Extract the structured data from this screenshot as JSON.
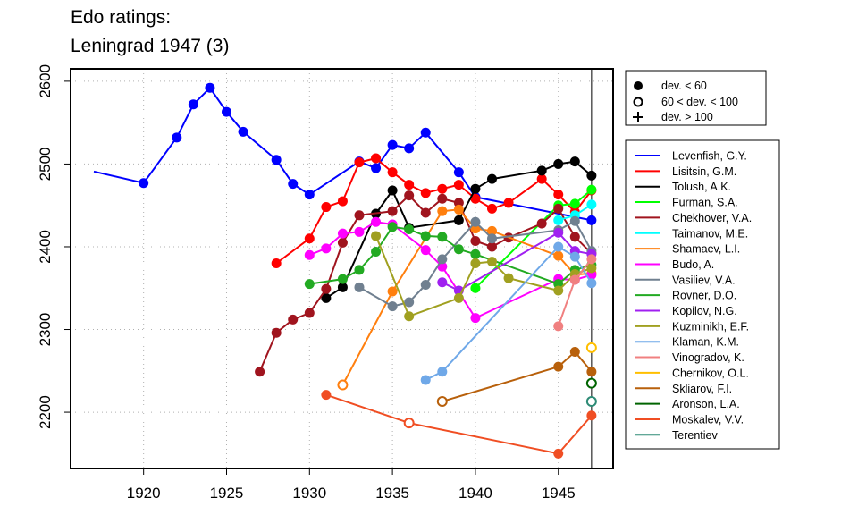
{
  "title_line1": "Edo ratings:",
  "title_line2": "Leningrad 1947 (3)",
  "chart_data": {
    "type": "line",
    "xlim": [
      1915.6,
      1948.3
    ],
    "ylim": [
      2132,
      2615
    ],
    "x_ticks": [
      1920,
      1925,
      1930,
      1935,
      1940,
      1945
    ],
    "y_ticks": [
      2200,
      2300,
      2400,
      2500,
      2600
    ],
    "grid": true,
    "reference_line_x": 1947,
    "legend_markers": [
      {
        "marker": "filled",
        "label": "dev. < 60"
      },
      {
        "marker": "open",
        "label": "60 < dev. < 100"
      },
      {
        "marker": "plus",
        "label": "dev. > 100"
      }
    ],
    "series": [
      {
        "name": "Levenfish, G.Y.",
        "color": "#0000FF",
        "points": [
          [
            1917,
            2491,
            "none"
          ],
          [
            1920,
            2477,
            "filled"
          ],
          [
            1922,
            2532,
            "filled"
          ],
          [
            1923,
            2572,
            "filled"
          ],
          [
            1924,
            2592,
            "filled"
          ],
          [
            1925,
            2563,
            "filled"
          ],
          [
            1926,
            2539,
            "filled"
          ],
          [
            1928,
            2505,
            "filled"
          ],
          [
            1929,
            2476,
            "filled"
          ],
          [
            1930,
            2463,
            "filled"
          ],
          [
            1933,
            2503,
            "filled"
          ],
          [
            1934,
            2495,
            "filled"
          ],
          [
            1935,
            2523,
            "filled"
          ],
          [
            1936,
            2519,
            "filled"
          ],
          [
            1937,
            2538,
            "filled"
          ],
          [
            1939,
            2490,
            "filled"
          ],
          [
            1940,
            2460,
            "filled"
          ],
          [
            1947,
            2432,
            "filled"
          ]
        ]
      },
      {
        "name": "Lisitsin, G.M.",
        "color": "#FF0000",
        "points": [
          [
            1928,
            2380,
            "filled"
          ],
          [
            1930,
            2410,
            "filled"
          ],
          [
            1931,
            2448,
            "filled"
          ],
          [
            1932,
            2455,
            "filled"
          ],
          [
            1933,
            2502,
            "filled"
          ],
          [
            1934,
            2507,
            "filled"
          ],
          [
            1935,
            2490,
            "filled"
          ],
          [
            1936,
            2475,
            "filled"
          ],
          [
            1937,
            2465,
            "filled"
          ],
          [
            1938,
            2470,
            "filled"
          ],
          [
            1939,
            2475,
            "filled"
          ],
          [
            1940,
            2458,
            "filled"
          ],
          [
            1941,
            2446,
            "filled"
          ],
          [
            1942,
            2453,
            "filled"
          ],
          [
            1944,
            2482,
            "filled"
          ],
          [
            1945,
            2463,
            "filled"
          ],
          [
            1946,
            2442,
            "filled"
          ],
          [
            1947,
            2468,
            "filled"
          ]
        ]
      },
      {
        "name": "Tolush, A.K.",
        "color": "#000000",
        "points": [
          [
            1931,
            2338,
            "filled"
          ],
          [
            1932,
            2351,
            "filled"
          ],
          [
            1934,
            2440,
            "filled"
          ],
          [
            1935,
            2468,
            "filled"
          ],
          [
            1936,
            2423,
            "filled"
          ],
          [
            1939,
            2432,
            "filled"
          ],
          [
            1940,
            2470,
            "filled"
          ],
          [
            1941,
            2482,
            "filled"
          ],
          [
            1944,
            2492,
            "filled"
          ],
          [
            1945,
            2500,
            "filled"
          ],
          [
            1946,
            2503,
            "filled"
          ],
          [
            1947,
            2486,
            "filled"
          ]
        ]
      },
      {
        "name": "Furman, S.A.",
        "color": "#00FF00",
        "points": [
          [
            1940,
            2350,
            "filled"
          ],
          [
            1945,
            2450,
            "filled"
          ],
          [
            1946,
            2452,
            "filled"
          ],
          [
            1947,
            2469,
            "filled"
          ]
        ]
      },
      {
        "name": "Chekhover, V.A.",
        "color": "#A0141E",
        "points": [
          [
            1927,
            2249,
            "filled"
          ],
          [
            1928,
            2296,
            "filled"
          ],
          [
            1929,
            2312,
            "filled"
          ],
          [
            1930,
            2320,
            "filled"
          ],
          [
            1931,
            2349,
            "filled"
          ],
          [
            1932,
            2405,
            "filled"
          ],
          [
            1933,
            2438,
            "filled"
          ],
          [
            1935,
            2443,
            "filled"
          ],
          [
            1936,
            2462,
            "filled"
          ],
          [
            1937,
            2441,
            "filled"
          ],
          [
            1938,
            2458,
            "filled"
          ],
          [
            1939,
            2453,
            "filled"
          ],
          [
            1940,
            2407,
            "filled"
          ],
          [
            1941,
            2400,
            "filled"
          ],
          [
            1942,
            2411,
            "filled"
          ],
          [
            1944,
            2428,
            "filled"
          ],
          [
            1945,
            2446,
            "filled"
          ],
          [
            1946,
            2412,
            "filled"
          ],
          [
            1947,
            2392,
            "filled"
          ]
        ]
      },
      {
        "name": "Taimanov, M.E.",
        "color": "#00FFFF",
        "points": [
          [
            1945,
            2432,
            "filled"
          ],
          [
            1946,
            2438,
            "filled"
          ],
          [
            1947,
            2451,
            "filled"
          ]
        ]
      },
      {
        "name": "Shamaev, L.I.",
        "color": "#FF7F0E",
        "points": [
          [
            1932,
            2233,
            "open"
          ],
          [
            1935,
            2346,
            "filled"
          ],
          [
            1938,
            2443,
            "filled"
          ],
          [
            1939,
            2445,
            "filled"
          ],
          [
            1940,
            2422,
            "filled"
          ],
          [
            1941,
            2419,
            "filled"
          ],
          [
            1945,
            2389,
            "filled"
          ],
          [
            1946,
            2366,
            "filled"
          ],
          [
            1947,
            2368,
            "filled"
          ]
        ]
      },
      {
        "name": "Budo, A.",
        "color": "#FF00FF",
        "points": [
          [
            1930,
            2390,
            "filled"
          ],
          [
            1931,
            2398,
            "filled"
          ],
          [
            1932,
            2416,
            "filled"
          ],
          [
            1933,
            2418,
            "filled"
          ],
          [
            1934,
            2430,
            "filled"
          ],
          [
            1935,
            2427,
            "filled"
          ],
          [
            1937,
            2396,
            "filled"
          ],
          [
            1938,
            2376,
            "filled"
          ],
          [
            1940,
            2314,
            "filled"
          ],
          [
            1945,
            2361,
            "filled"
          ],
          [
            1946,
            2360,
            "filled"
          ],
          [
            1947,
            2366,
            "filled"
          ]
        ]
      },
      {
        "name": "Vasiliev, V.A.",
        "color": "#708090",
        "points": [
          [
            1933,
            2351,
            "filled"
          ],
          [
            1935,
            2328,
            "filled"
          ],
          [
            1936,
            2333,
            "filled"
          ],
          [
            1937,
            2354,
            "filled"
          ],
          [
            1938,
            2385,
            "filled"
          ],
          [
            1940,
            2430,
            "filled"
          ],
          [
            1941,
            2410,
            "filled"
          ],
          [
            1945,
            2420,
            "filled"
          ],
          [
            1946,
            2431,
            "filled"
          ],
          [
            1947,
            2395,
            "filled"
          ]
        ]
      },
      {
        "name": "Rovner, D.O.",
        "color": "#22AA22",
        "points": [
          [
            1930,
            2355,
            "filled"
          ],
          [
            1932,
            2361,
            "filled"
          ],
          [
            1933,
            2372,
            "filled"
          ],
          [
            1934,
            2394,
            "filled"
          ],
          [
            1935,
            2424,
            "filled"
          ],
          [
            1936,
            2421,
            "filled"
          ],
          [
            1937,
            2413,
            "filled"
          ],
          [
            1938,
            2412,
            "filled"
          ],
          [
            1939,
            2397,
            "filled"
          ],
          [
            1940,
            2391,
            "filled"
          ],
          [
            1945,
            2355,
            "filled"
          ],
          [
            1946,
            2372,
            "filled"
          ],
          [
            1947,
            2378,
            "filled"
          ]
        ]
      },
      {
        "name": "Kopilov, N.G.",
        "color": "#A020F0",
        "points": [
          [
            1938,
            2357,
            "filled"
          ],
          [
            1939,
            2347,
            "filled"
          ],
          [
            1945,
            2417,
            "filled"
          ],
          [
            1946,
            2395,
            "filled"
          ],
          [
            1947,
            2391,
            "filled"
          ]
        ]
      },
      {
        "name": "Kuzminikh, E.F.",
        "color": "#A0A020",
        "points": [
          [
            1934,
            2413,
            "filled"
          ],
          [
            1936,
            2316,
            "filled"
          ],
          [
            1939,
            2338,
            "filled"
          ],
          [
            1940,
            2380,
            "filled"
          ],
          [
            1941,
            2382,
            "filled"
          ],
          [
            1942,
            2362,
            "filled"
          ],
          [
            1945,
            2347,
            "filled"
          ],
          [
            1946,
            2367,
            "filled"
          ],
          [
            1947,
            2374,
            "filled"
          ]
        ]
      },
      {
        "name": "Klaman, K.M.",
        "color": "#6FA8E8",
        "points": [
          [
            1937,
            2239,
            "filled"
          ],
          [
            1938,
            2249,
            "filled"
          ],
          [
            1945,
            2400,
            "filled"
          ],
          [
            1946,
            2388,
            "filled"
          ],
          [
            1947,
            2356,
            "filled"
          ]
        ]
      },
      {
        "name": "Vinogradov, K.",
        "color": "#F08080",
        "points": [
          [
            1945,
            2304,
            "filled"
          ],
          [
            1946,
            2360,
            "filled"
          ],
          [
            1947,
            2385,
            "filled"
          ]
        ]
      },
      {
        "name": "Chernikov, O.L.",
        "color": "#FFBF00",
        "points": [
          [
            1947,
            2278,
            "open"
          ]
        ]
      },
      {
        "name": "Skliarov, F.I.",
        "color": "#B8600B",
        "points": [
          [
            1938,
            2213,
            "open"
          ],
          [
            1945,
            2255,
            "filled"
          ],
          [
            1946,
            2273,
            "filled"
          ],
          [
            1947,
            2249,
            "filled"
          ]
        ]
      },
      {
        "name": "Aronson, L.A.",
        "color": "#006400",
        "points": [
          [
            1947,
            2235,
            "open"
          ]
        ]
      },
      {
        "name": "Moskalev, V.V.",
        "color": "#F04E23",
        "points": [
          [
            1931,
            2221,
            "filled"
          ],
          [
            1936,
            2187,
            "open"
          ],
          [
            1945,
            2150,
            "filled"
          ],
          [
            1947,
            2196,
            "filled"
          ]
        ]
      },
      {
        "name": "Terentiev",
        "color": "#2E8B76",
        "points": [
          [
            1947,
            2213,
            "open"
          ]
        ]
      }
    ]
  }
}
